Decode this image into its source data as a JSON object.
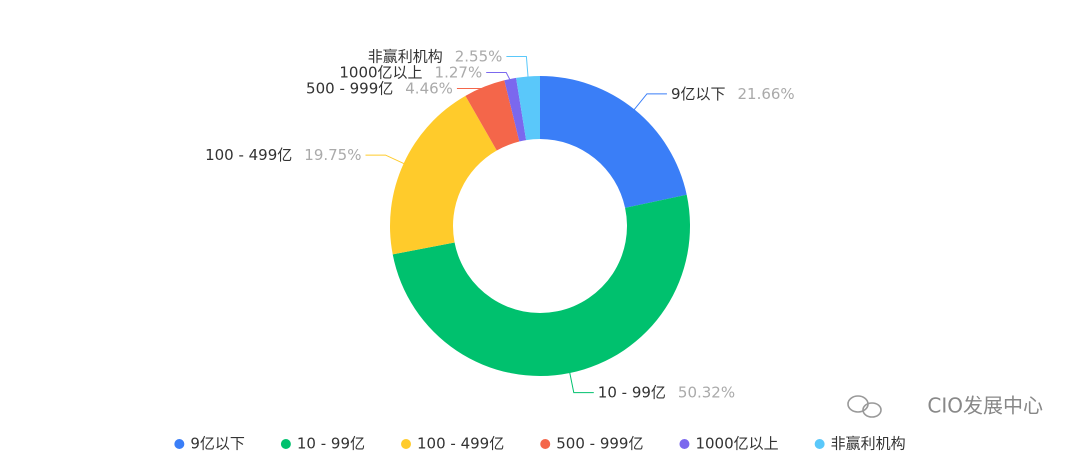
{
  "chart_data": {
    "type": "donut",
    "categories": [
      "9亿以下",
      "10 - 99亿",
      "100 - 499亿",
      "500 - 999亿",
      "1000亿以上",
      "非赢利机构"
    ],
    "values": [
      21.66,
      50.32,
      19.75,
      4.46,
      1.27,
      2.55
    ],
    "value_labels": [
      "21.66%",
      "50.32%",
      "19.75%",
      "4.46%",
      "1.27%",
      "2.55%"
    ],
    "colors": [
      "#3a7ef7",
      "#00c16e",
      "#ffcb2b",
      "#f4664a",
      "#7b68ee",
      "#5ac8fa"
    ],
    "legend": "bottom",
    "watermark": "CIO发展中心"
  }
}
